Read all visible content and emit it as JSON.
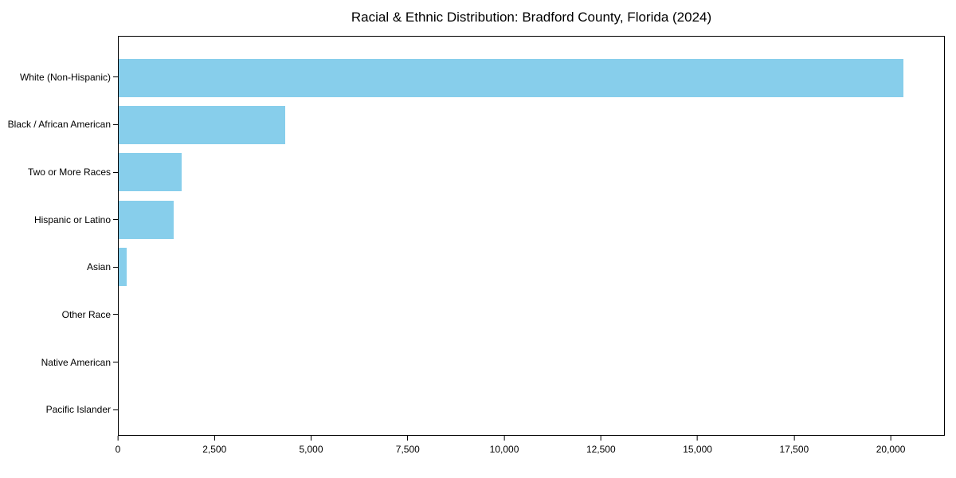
{
  "title": "Racial & Ethnic Distribution: Bradford County, Florida (2024)",
  "chart_data": {
    "type": "bar",
    "orientation": "horizontal",
    "title": "Racial & Ethnic Distribution: Bradford County, Florida (2024)",
    "xlabel": "",
    "ylabel": "",
    "categories": [
      "White (Non-Hispanic)",
      "Black / African American",
      "Two or More Races",
      "Hispanic or Latino",
      "Asian",
      "Other Race",
      "Native American",
      "Pacific Islander"
    ],
    "values": [
      20350,
      4320,
      1630,
      1420,
      210,
      0,
      0,
      0
    ],
    "bar_color": "#87ceeb",
    "xlim": [
      0,
      21400
    ],
    "xticks": [
      0,
      2500,
      5000,
      7500,
      10000,
      12500,
      15000,
      17500,
      20000
    ],
    "xtick_labels": [
      "0",
      "2,500",
      "5,000",
      "7,500",
      "10,000",
      "12,500",
      "15,000",
      "17,500",
      "20,000"
    ],
    "grid": false,
    "legend": "none",
    "background_color": "#ffffff",
    "spine_color": "#000000"
  }
}
